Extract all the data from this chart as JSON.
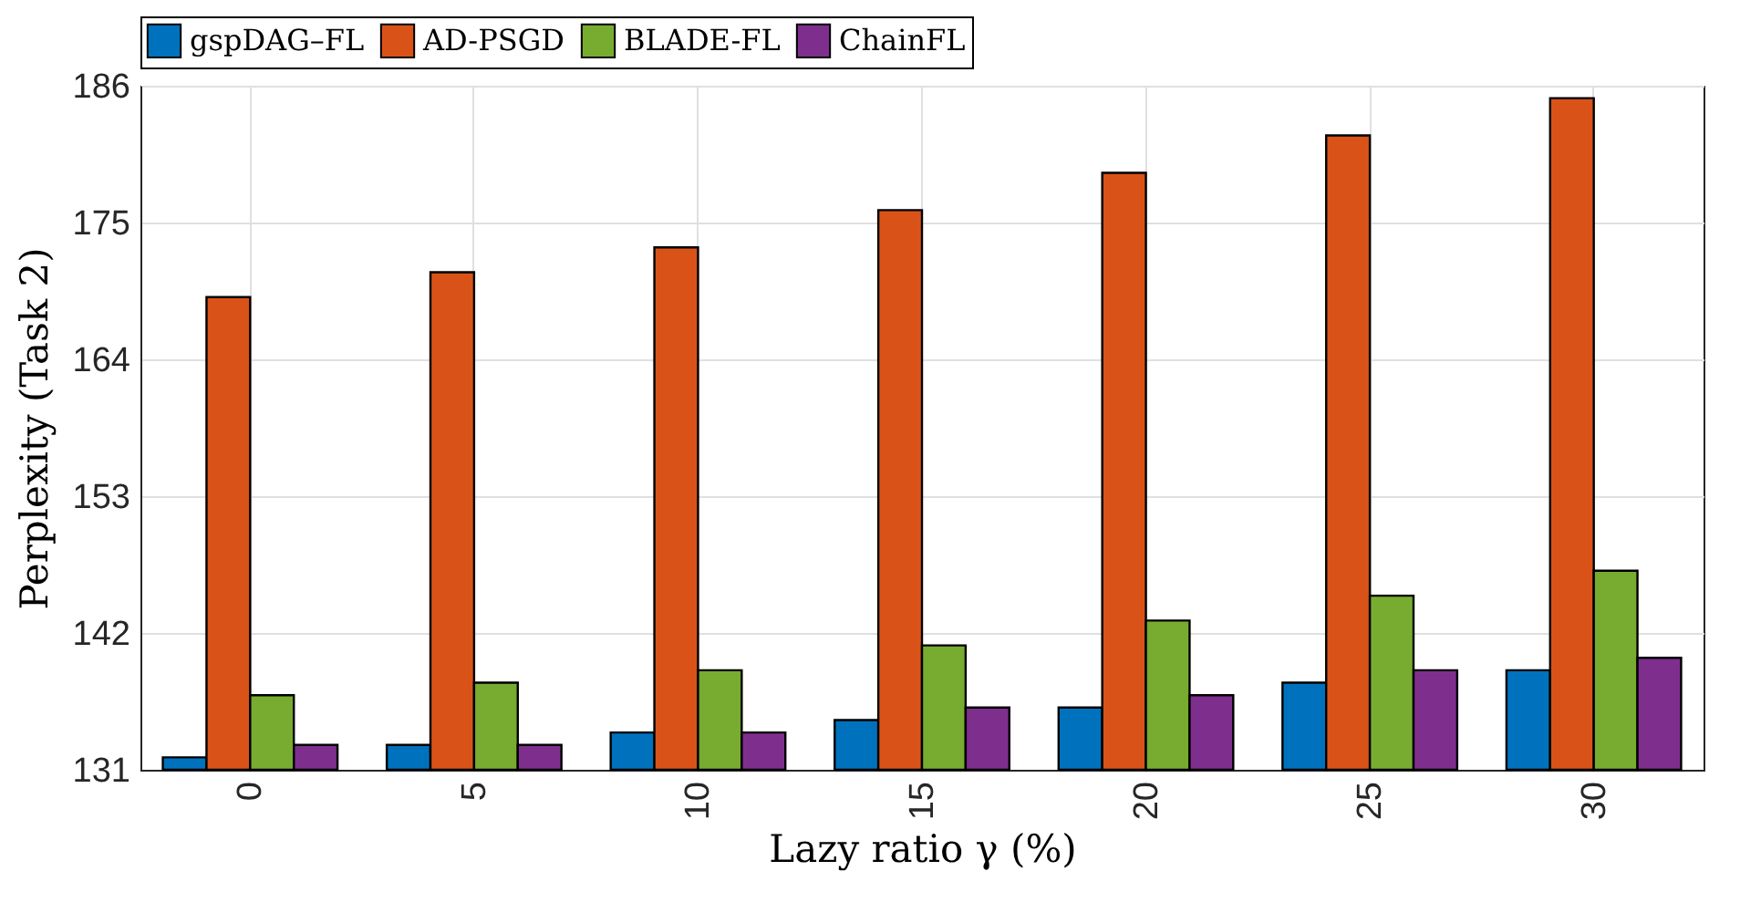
{
  "chart_data": {
    "type": "bar",
    "xlabel": "Lazy ratio γ (%)",
    "ylabel": "Perplexity (Task 2)",
    "categories": [
      "0",
      "5",
      "10",
      "15",
      "20",
      "25",
      "30"
    ],
    "series": [
      {
        "name": "gspDAG–FL",
        "color": "#0072bd",
        "values": [
          132,
          133,
          134,
          135,
          136,
          138,
          139
        ]
      },
      {
        "name": "AD-PSGD",
        "color": "#d95319",
        "values": [
          169,
          171,
          173,
          176,
          179,
          182,
          185
        ]
      },
      {
        "name": "BLADE-FL",
        "color": "#77ac30",
        "values": [
          137,
          138,
          139,
          141,
          143,
          145,
          147
        ]
      },
      {
        "name": "ChainFL",
        "color": "#7e2f8e",
        "values": [
          133,
          133,
          134,
          136,
          137,
          139,
          140
        ]
      }
    ],
    "ylim": [
      131,
      186
    ],
    "yticks": [
      131,
      142,
      153,
      164,
      175,
      186
    ],
    "grid": true,
    "legend": "top"
  }
}
